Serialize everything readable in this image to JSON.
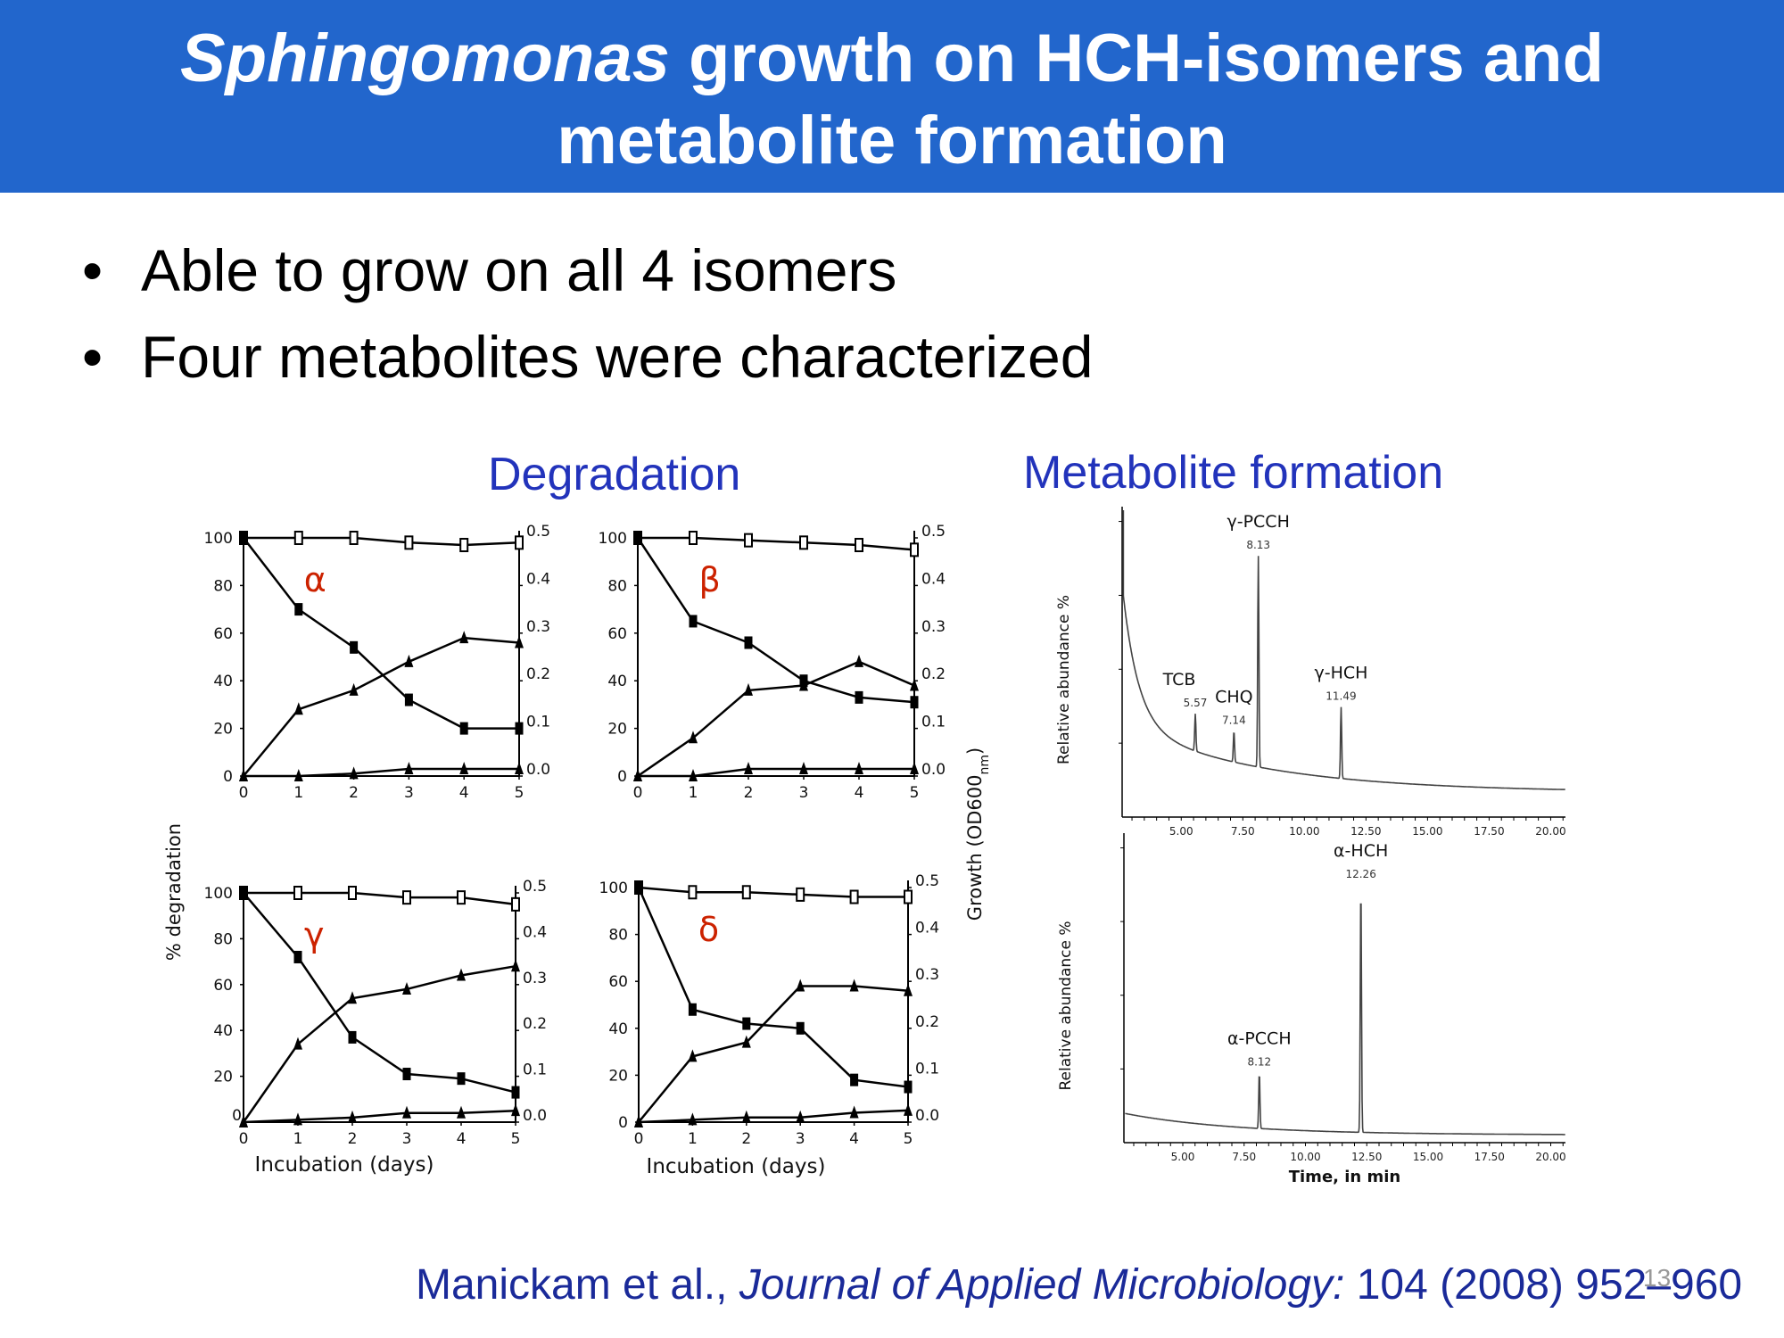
{
  "slide": {
    "title_italic": "Sphingomonas",
    "title_rest_line1": "growth on HCH-isomers and",
    "title_line2": "metabolite formation",
    "bullets": [
      "Able to grow on all 4 isomers",
      "Four metabolites were characterized"
    ],
    "bullet_glyph": "•",
    "degradation_heading": "Degradation",
    "metabolite_heading": "Metabolite formation",
    "citation_authors": "Manickam et al.,",
    "citation_journal": "Journal of Applied Microbiology:",
    "citation_ref": "104 (2008) 952–960",
    "slide_number": "13",
    "colors": {
      "title_bar": "#2266cc",
      "heading_blue": "#2233bb",
      "greek_red": "#cc2200",
      "trace": "#444444"
    }
  },
  "chart_data": [
    {
      "type": "line",
      "panel": "alpha",
      "annotation": "α",
      "x": [
        0,
        1,
        2,
        3,
        4,
        5
      ],
      "left_ticks": [
        "0",
        "20",
        "40",
        "60",
        "80",
        "100"
      ],
      "right_ticks": [
        "0.0",
        "0.1",
        "0.2",
        "0.3",
        "0.4",
        "0.5"
      ],
      "x_ticks": [
        "0",
        "1",
        "2",
        "3",
        "4",
        "5"
      ],
      "ylim_left": [
        0,
        100
      ],
      "ylim_right": [
        0,
        0.5
      ],
      "xlim": [
        0,
        5
      ],
      "series": [
        {
          "marker": "open-square",
          "axis": "left",
          "values": [
            100,
            100,
            100,
            98,
            97,
            98
          ]
        },
        {
          "marker": "filled-square",
          "axis": "left",
          "values": [
            100,
            70,
            54,
            32,
            20,
            20
          ]
        },
        {
          "marker": "filled-triangle",
          "axis": "right",
          "values": [
            0.0,
            0.14,
            0.18,
            0.24,
            0.29,
            0.28
          ]
        },
        {
          "marker": "filled-triangle",
          "axis": "right",
          "values": [
            0.0,
            0.0,
            0.005,
            0.015,
            0.015,
            0.015
          ]
        }
      ]
    },
    {
      "type": "line",
      "panel": "beta",
      "annotation": "β",
      "x": [
        0,
        1,
        2,
        3,
        4,
        5
      ],
      "left_ticks": [
        "0",
        "20",
        "40",
        "60",
        "80",
        "100"
      ],
      "right_ticks": [
        "0.0",
        "0.1",
        "0.2",
        "0.3",
        "0.4",
        "0.5"
      ],
      "x_ticks": [
        "0",
        "1",
        "2",
        "3",
        "4",
        "5"
      ],
      "ylim_left": [
        0,
        100
      ],
      "ylim_right": [
        0,
        0.5
      ],
      "xlim": [
        0,
        5
      ],
      "series": [
        {
          "marker": "open-square",
          "axis": "left",
          "values": [
            100,
            100,
            99,
            98,
            97,
            95
          ]
        },
        {
          "marker": "filled-square",
          "axis": "left",
          "values": [
            100,
            65,
            56,
            40,
            33,
            31
          ]
        },
        {
          "marker": "filled-triangle",
          "axis": "right",
          "values": [
            0.0,
            0.08,
            0.18,
            0.19,
            0.24,
            0.19
          ]
        },
        {
          "marker": "filled-triangle",
          "axis": "right",
          "values": [
            0.0,
            0.0,
            0.015,
            0.015,
            0.015,
            0.015
          ]
        }
      ]
    },
    {
      "type": "line",
      "panel": "gamma",
      "annotation": "γ",
      "x": [
        0,
        1,
        2,
        3,
        4,
        5
      ],
      "left_ticks": [
        "20",
        "40",
        "60",
        "80",
        "100"
      ],
      "left_zero_tick": "0",
      "right_ticks": [
        "0.0",
        "0.1",
        "0.2",
        "0.3",
        "0.4",
        "0.5"
      ],
      "x_ticks": [
        "0",
        "1",
        "2",
        "3",
        "4",
        "5"
      ],
      "ylim_left": [
        0,
        100
      ],
      "ylim_right": [
        0,
        0.5
      ],
      "xlim": [
        0,
        5
      ],
      "series": [
        {
          "marker": "open-square",
          "axis": "left",
          "values": [
            100,
            100,
            100,
            98,
            98,
            95
          ]
        },
        {
          "marker": "filled-square",
          "axis": "left",
          "values": [
            100,
            72,
            37,
            21,
            19,
            13
          ]
        },
        {
          "marker": "filled-triangle",
          "axis": "right",
          "values": [
            0.0,
            0.17,
            0.27,
            0.29,
            0.32,
            0.34
          ]
        },
        {
          "marker": "filled-triangle",
          "axis": "right",
          "values": [
            0.0,
            0.005,
            0.01,
            0.02,
            0.02,
            0.025
          ]
        }
      ]
    },
    {
      "type": "line",
      "panel": "delta",
      "annotation": "δ",
      "x": [
        0,
        1,
        2,
        3,
        4,
        5
      ],
      "left_ticks": [
        "0",
        "20",
        "40",
        "60",
        "80",
        "100"
      ],
      "right_ticks": [
        "0.0",
        "0.1",
        "0.2",
        "0.3",
        "0.4",
        "0.5"
      ],
      "x_ticks": [
        "0",
        "1",
        "2",
        "3",
        "4",
        "5"
      ],
      "ylim_left": [
        0,
        100
      ],
      "ylim_right": [
        0,
        0.5
      ],
      "xlim": [
        0,
        5
      ],
      "series": [
        {
          "marker": "open-square",
          "axis": "left",
          "values": [
            100,
            98,
            98,
            97,
            96,
            96
          ]
        },
        {
          "marker": "filled-square",
          "axis": "left",
          "values": [
            100,
            48,
            42,
            40,
            18,
            15
          ]
        },
        {
          "marker": "filled-triangle",
          "axis": "right",
          "values": [
            0.0,
            0.14,
            0.17,
            0.29,
            0.29,
            0.28
          ]
        },
        {
          "marker": "filled-triangle",
          "axis": "right",
          "values": [
            0.0,
            0.005,
            0.01,
            0.01,
            0.02,
            0.025
          ]
        }
      ]
    },
    {
      "type": "line",
      "panel": "chromatogram-top",
      "ylabel": "Relative abundance %",
      "x_ticks": [
        "5.00",
        "7.50",
        "10.00",
        "12.50",
        "15.00",
        "17.50",
        "20.00"
      ],
      "xlim": [
        2.6,
        20.6
      ],
      "peaks": [
        {
          "name": "TCB",
          "rt": "5.57",
          "x": 5.57,
          "height": 0.12
        },
        {
          "name": "CHQ",
          "rt": "7.14",
          "x": 7.14,
          "height": 0.1
        },
        {
          "name": "γ-PCCH",
          "rt": "8.13",
          "x": 8.13,
          "height": 0.68
        },
        {
          "name": "γ-HCH",
          "rt": "11.49",
          "x": 11.49,
          "height": 0.23
        }
      ]
    },
    {
      "type": "line",
      "panel": "chromatogram-bottom",
      "ylabel": "Relative abundance %",
      "xlabel": "Time, in min",
      "x_ticks": [
        "5.00",
        "7.50",
        "10.00",
        "12.50",
        "15.00",
        "17.50",
        "20.00"
      ],
      "xlim": [
        2.6,
        20.6
      ],
      "peaks": [
        {
          "name": "α-PCCH",
          "rt": "8.12",
          "x": 8.12,
          "height": 0.18
        },
        {
          "name": "α-HCH",
          "rt": "12.26",
          "x": 12.26,
          "height": 0.8
        }
      ]
    }
  ],
  "shared_labels": {
    "left_axis_label": "% degradation",
    "right_axis_label_main": "Growth (OD600",
    "right_axis_label_sub": "nm",
    "right_axis_label_end": ")",
    "x_axis_label_left": "Incubation (days)",
    "x_axis_label_right": "Incubation (days)"
  }
}
